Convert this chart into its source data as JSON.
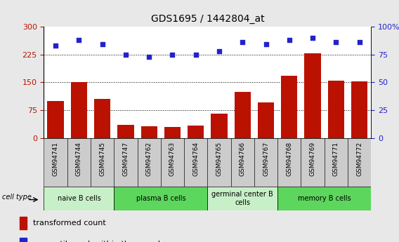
{
  "title": "GDS1695 / 1442804_at",
  "samples": [
    "GSM94741",
    "GSM94744",
    "GSM94745",
    "GSM94747",
    "GSM94762",
    "GSM94763",
    "GSM94764",
    "GSM94765",
    "GSM94766",
    "GSM94767",
    "GSM94768",
    "GSM94769",
    "GSM94771",
    "GSM94772"
  ],
  "transformed_counts": [
    100,
    150,
    105,
    35,
    32,
    30,
    33,
    65,
    125,
    95,
    168,
    228,
    155,
    152
  ],
  "percentile_ranks": [
    83,
    88,
    84,
    75,
    73,
    75,
    75,
    78,
    86,
    84,
    88,
    90,
    86,
    86
  ],
  "cell_types": [
    {
      "label": "naive B cells",
      "start": 0,
      "end": 3,
      "color": "#c8f0c8"
    },
    {
      "label": "plasma B cells",
      "start": 3,
      "end": 7,
      "color": "#5cd65c"
    },
    {
      "label": "germinal center B\ncells",
      "start": 7,
      "end": 10,
      "color": "#c8f0c8"
    },
    {
      "label": "memory B cells",
      "start": 10,
      "end": 14,
      "color": "#5cd65c"
    }
  ],
  "bar_color": "#bb1100",
  "dot_color": "#2222cc",
  "left_ylim": [
    0,
    300
  ],
  "right_ylim": [
    0,
    100
  ],
  "left_yticks": [
    0,
    75,
    150,
    225,
    300
  ],
  "right_yticks": [
    0,
    25,
    50,
    75,
    100
  ],
  "right_yticklabels": [
    "0",
    "25",
    "50",
    "75",
    "100%"
  ],
  "grid_values": [
    75,
    150,
    225
  ],
  "background_color": "#e8e8e8",
  "plot_bg_color": "#ffffff",
  "xtick_bg_color": "#cccccc"
}
